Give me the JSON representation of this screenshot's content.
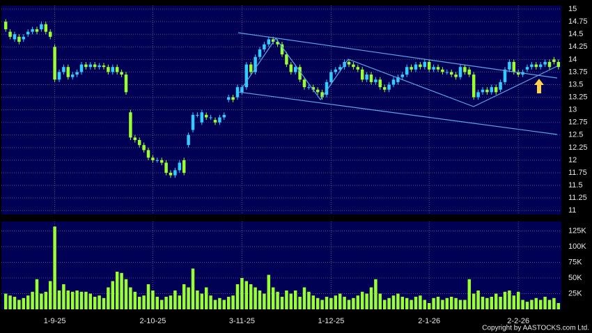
{
  "chart_data": {
    "type": "candlestick",
    "categories": [
      null,
      null,
      null,
      null,
      null,
      null,
      null,
      null,
      null,
      null,
      null,
      "1-9-25",
      null,
      null,
      null,
      null,
      null,
      null,
      null,
      null,
      null,
      null,
      null,
      null,
      null,
      null,
      null,
      null,
      null,
      null,
      null,
      null,
      null,
      "2-10-25",
      null,
      null,
      null,
      null,
      null,
      null,
      null,
      null,
      null,
      null,
      null,
      null,
      null,
      null,
      null,
      null,
      null,
      null,
      null,
      "3-11-25",
      null,
      null,
      null,
      null,
      null,
      null,
      null,
      null,
      null,
      null,
      null,
      null,
      null,
      null,
      null,
      null,
      null,
      null,
      null,
      "1-12-25",
      null,
      null,
      null,
      null,
      null,
      null,
      null,
      null,
      null,
      null,
      null,
      null,
      null,
      null,
      null,
      null,
      null,
      null,
      null,
      null,
      null,
      "2-1-26",
      null,
      null,
      null,
      null,
      null,
      null,
      null,
      null,
      null,
      null,
      null,
      null,
      null,
      null,
      null,
      null,
      null,
      null,
      null,
      "2-2-26",
      null,
      null,
      null,
      null,
      null,
      null,
      null,
      null,
      null
    ],
    "open": [
      14.75,
      14.55,
      14.4,
      14.45,
      14.4,
      14.5,
      14.55,
      14.6,
      14.6,
      14.7,
      14.55,
      14.25,
      13.6,
      13.75,
      13.85,
      13.65,
      13.7,
      13.75,
      13.9,
      13.85,
      13.9,
      13.85,
      13.88,
      13.85,
      13.75,
      13.85,
      13.75,
      13.7,
      12.95,
      12.45,
      12.4,
      12.3,
      12.2,
      12.05,
      12.0,
      12.0,
      11.95,
      11.75,
      11.7,
      11.8,
      12.0,
      12.3,
      12.6,
      12.9,
      12.75,
      12.9,
      12.85,
      12.8,
      12.75,
      12.85,
      13.2,
      13.25,
      13.25,
      13.35,
      13.45,
      13.9,
      13.75,
      14.05,
      14.2,
      14.3,
      14.4,
      14.35,
      14.3,
      14.1,
      13.9,
      13.75,
      13.85,
      13.6,
      13.45,
      13.45,
      13.4,
      13.35,
      13.3,
      13.55,
      13.75,
      13.8,
      13.85,
      13.95,
      13.9,
      13.85,
      13.8,
      13.6,
      13.7,
      13.55,
      13.6,
      13.45,
      13.4,
      13.5,
      13.55,
      13.65,
      13.7,
      13.85,
      13.8,
      13.9,
      13.85,
      13.95,
      13.8,
      13.85,
      13.8,
      13.75,
      13.75,
      13.7,
      13.65,
      13.85,
      13.8,
      13.7,
      13.25,
      13.35,
      13.4,
      13.35,
      13.45,
      13.4,
      13.55,
      13.8,
      13.95,
      13.75,
      13.7,
      13.8,
      13.85,
      13.9,
      13.85,
      13.9,
      13.95,
      14.0,
      13.95
    ],
    "high": [
      14.8,
      14.6,
      14.55,
      14.5,
      14.5,
      14.6,
      14.65,
      14.65,
      14.75,
      14.75,
      14.6,
      14.3,
      13.8,
      13.9,
      13.9,
      13.75,
      13.8,
      13.95,
      13.95,
      13.95,
      13.95,
      13.93,
      13.93,
      13.9,
      13.9,
      13.9,
      13.8,
      13.75,
      13.0,
      12.5,
      12.45,
      12.35,
      12.25,
      12.1,
      12.05,
      12.05,
      12.0,
      11.8,
      11.85,
      12.0,
      12.05,
      12.55,
      12.95,
      12.95,
      13.0,
      12.95,
      12.9,
      12.85,
      12.9,
      12.95,
      13.3,
      13.3,
      13.5,
      13.5,
      13.95,
      13.95,
      14.1,
      14.25,
      14.35,
      14.45,
      14.45,
      14.4,
      14.35,
      14.15,
      13.95,
      13.9,
      13.9,
      13.65,
      13.5,
      13.5,
      13.45,
      13.4,
      13.6,
      13.8,
      13.85,
      13.9,
      14.0,
      14.0,
      13.95,
      13.9,
      13.85,
      13.75,
      13.75,
      13.65,
      13.65,
      13.5,
      13.55,
      13.65,
      13.7,
      13.75,
      13.9,
      13.9,
      13.95,
      13.95,
      14.0,
      14.0,
      13.9,
      13.9,
      13.85,
      13.8,
      13.8,
      13.75,
      13.9,
      13.9,
      13.85,
      13.75,
      13.4,
      13.45,
      13.45,
      13.5,
      13.5,
      13.6,
      13.85,
      14.0,
      14.0,
      13.8,
      13.8,
      13.9,
      13.95,
      13.95,
      13.95,
      14.0,
      14.0,
      14.05,
      14.0
    ],
    "low": [
      14.55,
      14.4,
      14.35,
      14.3,
      14.35,
      14.45,
      14.5,
      14.5,
      14.55,
      14.5,
      14.4,
      13.55,
      13.55,
      13.7,
      13.6,
      13.6,
      13.65,
      13.7,
      13.8,
      13.8,
      13.8,
      13.8,
      13.8,
      13.7,
      13.7,
      13.7,
      13.65,
      13.3,
      12.4,
      12.35,
      12.25,
      12.15,
      12.0,
      11.95,
      11.95,
      11.9,
      11.7,
      11.65,
      11.65,
      11.75,
      11.7,
      12.25,
      12.55,
      12.85,
      12.7,
      12.8,
      12.8,
      12.7,
      12.7,
      12.8,
      13.15,
      13.15,
      13.2,
      13.3,
      13.4,
      13.7,
      13.7,
      14.0,
      14.15,
      14.25,
      14.3,
      14.25,
      14.05,
      13.85,
      13.7,
      13.7,
      13.55,
      13.4,
      13.4,
      13.35,
      13.3,
      13.2,
      13.25,
      13.5,
      13.7,
      13.75,
      13.8,
      13.85,
      13.8,
      13.75,
      13.55,
      13.55,
      13.5,
      13.5,
      13.4,
      13.35,
      13.35,
      13.45,
      13.5,
      13.6,
      13.65,
      13.75,
      13.75,
      13.8,
      13.8,
      13.75,
      13.75,
      13.75,
      13.7,
      13.7,
      13.65,
      13.6,
      13.6,
      13.7,
      13.65,
      13.2,
      13.2,
      13.3,
      13.3,
      13.3,
      13.3,
      13.35,
      13.5,
      13.75,
      13.7,
      13.65,
      13.65,
      13.75,
      13.8,
      13.8,
      13.8,
      13.85,
      13.8,
      13.9,
      13.8
    ],
    "close": [
      14.6,
      14.45,
      14.5,
      14.35,
      14.45,
      14.55,
      14.6,
      14.55,
      14.7,
      14.55,
      14.45,
      13.6,
      13.75,
      13.85,
      13.65,
      13.7,
      13.75,
      13.9,
      13.85,
      13.9,
      13.85,
      13.88,
      13.85,
      13.75,
      13.85,
      13.75,
      13.7,
      13.35,
      12.45,
      12.4,
      12.3,
      12.2,
      12.05,
      12.0,
      12.0,
      11.95,
      11.75,
      11.7,
      11.8,
      11.95,
      11.75,
      12.5,
      12.9,
      12.9,
      12.95,
      12.85,
      12.85,
      12.75,
      12.85,
      12.9,
      13.25,
      13.2,
      13.45,
      13.45,
      13.9,
      13.75,
      14.05,
      14.2,
      14.3,
      14.4,
      14.35,
      14.3,
      14.1,
      13.9,
      13.75,
      13.85,
      13.6,
      13.45,
      13.45,
      13.4,
      13.35,
      13.25,
      13.55,
      13.75,
      13.8,
      13.85,
      13.95,
      13.9,
      13.85,
      13.8,
      13.6,
      13.7,
      13.55,
      13.6,
      13.45,
      13.4,
      13.5,
      13.6,
      13.65,
      13.7,
      13.85,
      13.8,
      13.9,
      13.85,
      13.95,
      13.8,
      13.85,
      13.8,
      13.75,
      13.75,
      13.7,
      13.65,
      13.85,
      13.75,
      13.7,
      13.25,
      13.35,
      13.4,
      13.35,
      13.45,
      13.35,
      13.55,
      13.8,
      13.95,
      13.75,
      13.7,
      13.75,
      13.85,
      13.9,
      13.85,
      13.9,
      13.95,
      13.85,
      13.95,
      13.85
    ],
    "volume": [
      25000,
      22000,
      20000,
      15000,
      18000,
      22000,
      28000,
      48000,
      25000,
      28000,
      45000,
      132000,
      30000,
      40000,
      30000,
      28000,
      30000,
      28000,
      28000,
      25000,
      20000,
      22000,
      18000,
      35000,
      45000,
      60000,
      58000,
      48000,
      35000,
      28000,
      20000,
      22000,
      40000,
      30000,
      20000,
      15000,
      20000,
      22000,
      30000,
      22000,
      40000,
      35000,
      65000,
      30000,
      25000,
      35000,
      22000,
      15000,
      18000,
      15000,
      20000,
      22000,
      40000,
      50000,
      45000,
      40000,
      35000,
      30000,
      25000,
      55000,
      35000,
      28000,
      20000,
      30000,
      25000,
      30000,
      20000,
      35000,
      28000,
      22000,
      18000,
      15000,
      20000,
      18000,
      22000,
      25000,
      20000,
      15000,
      18000,
      22000,
      28000,
      25000,
      35000,
      48000,
      25000,
      15000,
      18000,
      22000,
      25000,
      20000,
      18000,
      15000,
      20000,
      22000,
      15000,
      10000,
      18000,
      20000,
      15000,
      18000,
      20000,
      18000,
      15000,
      15000,
      48000,
      25000,
      30000,
      20000,
      18000,
      20000,
      25000,
      20000,
      28000,
      30000,
      22000,
      28000,
      15000,
      12000,
      15000,
      18000,
      15000,
      20000,
      15000,
      18000,
      10000
    ],
    "up_color": "#33ccff",
    "down_color": "#99ff33",
    "volume_color": "#99ff33",
    "ylim": [
      10.92,
      15.07
    ],
    "yticks": [
      11,
      11.25,
      11.5,
      11.75,
      12,
      12.25,
      12.5,
      12.75,
      13,
      13.25,
      13.5,
      13.75,
      14,
      14.25,
      14.5,
      14.75,
      15
    ],
    "volume_ylim": [
      0,
      140000
    ],
    "volume_yticks": [
      {
        "value": 25000,
        "label": "25K"
      },
      {
        "value": 50000,
        "label": "50K"
      },
      {
        "value": 75000,
        "label": "75K"
      },
      {
        "value": 100000,
        "label": "100K"
      },
      {
        "value": 125000,
        "label": "125K"
      }
    ],
    "grid": true,
    "copyright": "Copyright by AASTOCKS.com Ltd."
  }
}
